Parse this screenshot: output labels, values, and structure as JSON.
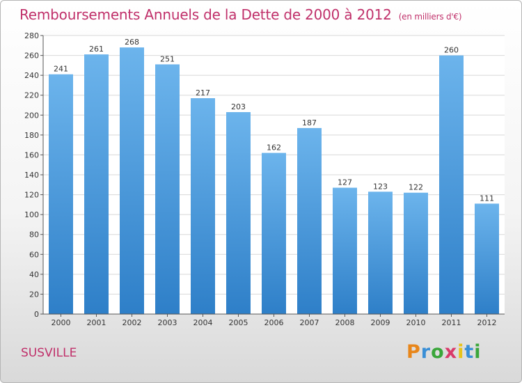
{
  "title": "Remboursements Annuels de la Dette de 2000 à 2012",
  "unit": "(en milliers d'€)",
  "commune": "SUSVILLE",
  "logo": {
    "letters": [
      "P",
      "r",
      "o",
      "x",
      "i",
      "t",
      "i"
    ],
    "colors": [
      "#e8861a",
      "#3a8fd6",
      "#3aa63a",
      "#d93a6a",
      "#e8c31a",
      "#3a8fd6",
      "#3aa63a"
    ]
  },
  "colors": {
    "bar": "#3d8fd4",
    "bar_light": "#6cb4ec",
    "grid": "#d8d8d8",
    "title": "#c0306a"
  },
  "chart_data": {
    "type": "bar",
    "categories": [
      "2000",
      "2001",
      "2002",
      "2003",
      "2004",
      "2005",
      "2006",
      "2007",
      "2008",
      "2009",
      "2010",
      "2011",
      "2012"
    ],
    "values": [
      241,
      261,
      268,
      251,
      217,
      203,
      162,
      187,
      127,
      123,
      122,
      260,
      111
    ],
    "title": "Remboursements Annuels de la Dette de 2000 à 2012",
    "xlabel": "",
    "ylabel": "",
    "ylim": [
      0,
      280
    ],
    "yticks": [
      0,
      20,
      40,
      60,
      80,
      100,
      120,
      140,
      160,
      180,
      200,
      220,
      240,
      260,
      280
    ],
    "grid": true,
    "legend": "none"
  }
}
